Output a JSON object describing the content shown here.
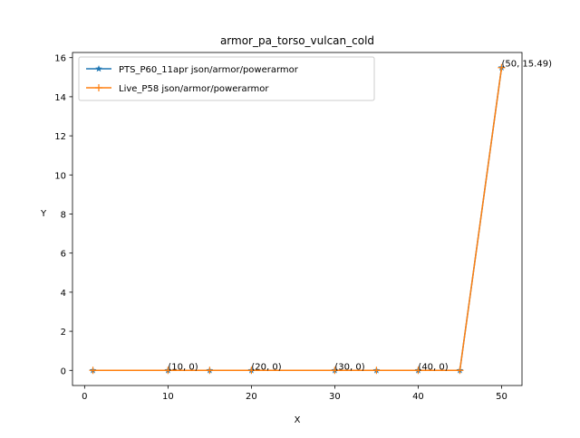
{
  "chart_data": {
    "type": "line",
    "title": "armor_pa_torso_vulcan_cold",
    "xlabel": "X",
    "ylabel": "Y",
    "xlim": [
      -1.45,
      52.45
    ],
    "ylim": [
      -0.7745,
      16.2645
    ],
    "xticks": [
      0,
      10,
      20,
      30,
      40,
      50
    ],
    "yticks": [
      0,
      2,
      4,
      6,
      8,
      10,
      12,
      14,
      16
    ],
    "legend_position": "upper-left",
    "grid": false,
    "x": [
      1,
      10,
      15,
      20,
      30,
      35,
      40,
      45,
      50
    ],
    "series": [
      {
        "name": "PTS_P60_11apr json/armor/powerarmor",
        "color": "#1f77b4",
        "marker": "star",
        "values": [
          0,
          0,
          0,
          0,
          0,
          0,
          0,
          0,
          15.49
        ]
      },
      {
        "name": "Live_P58 json/armor/powerarmor",
        "color": "#ff7f0e",
        "marker": "plus",
        "values": [
          0,
          0,
          0,
          0,
          0,
          0,
          0,
          0,
          15.49
        ]
      }
    ],
    "annotations": [
      {
        "x": 10,
        "y": 0,
        "text": "(10, 0)"
      },
      {
        "x": 20,
        "y": 0,
        "text": "(20, 0)"
      },
      {
        "x": 30,
        "y": 0,
        "text": "(30, 0)"
      },
      {
        "x": 40,
        "y": 0,
        "text": "(40, 0)"
      },
      {
        "x": 50,
        "y": 15.49,
        "text": "(50, 15.49)"
      }
    ]
  }
}
